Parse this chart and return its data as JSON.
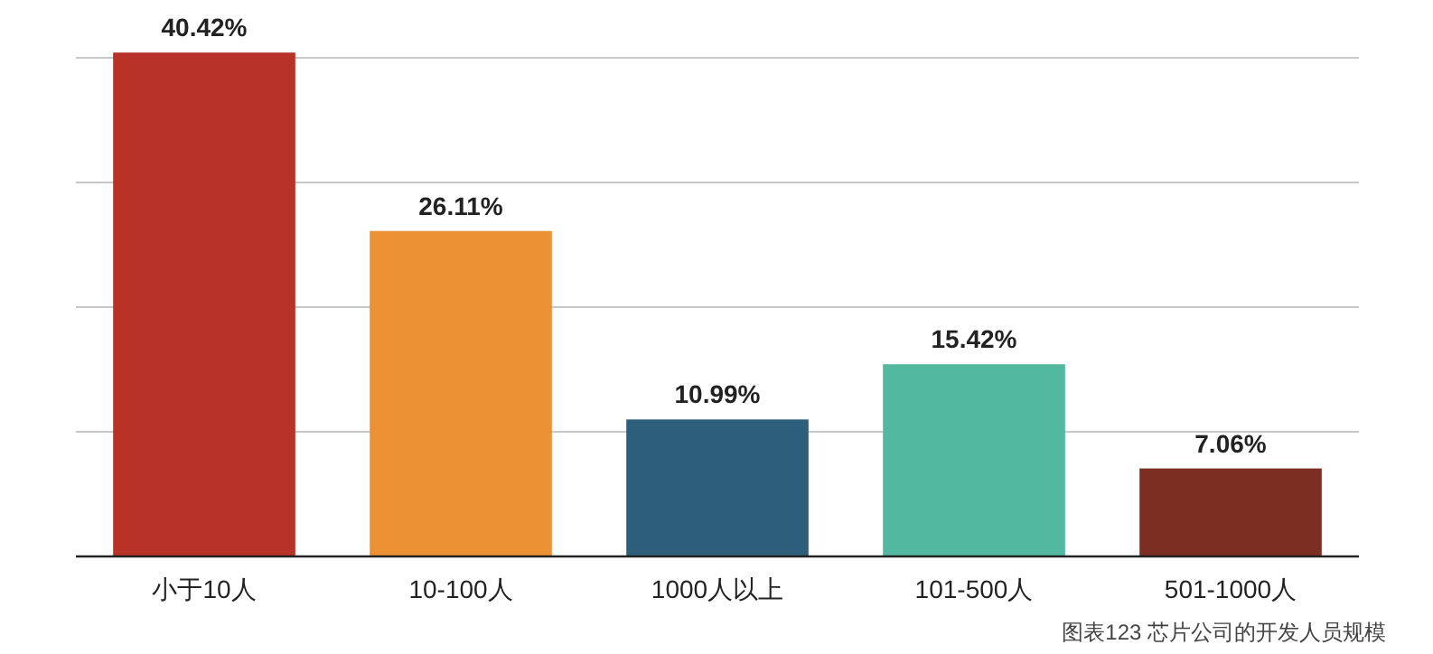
{
  "chart_data": {
    "type": "bar",
    "categories": [
      "小于10人",
      "10-100人",
      "1000人以上",
      "101-500人",
      "501-1000人"
    ],
    "values": [
      40.42,
      26.11,
      10.99,
      15.42,
      7.06
    ],
    "colors": [
      "#b83227",
      "#ec9234",
      "#2d5f7a",
      "#52b9a0",
      "#7d2e22"
    ],
    "value_labels": [
      "40.42%",
      "26.11%",
      "10.99%",
      "15.42%",
      "7.06%"
    ],
    "yticks": [
      {
        "value": 10,
        "label": null
      },
      {
        "value": 20,
        "label": null
      },
      {
        "value": 30,
        "label": null
      },
      {
        "value": 40,
        "label": null
      }
    ],
    "grid": "y",
    "tick_labels": "x",
    "annotations": [
      "图表123 芯片公司的开发人员规模"
    ]
  }
}
